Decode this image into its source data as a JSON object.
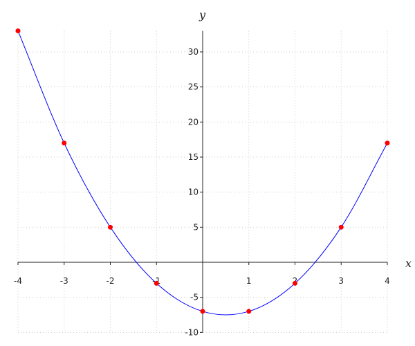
{
  "chart_data": {
    "type": "scatter",
    "title": "",
    "xlabel": "x",
    "ylabel": "y",
    "xlim": [
      -4,
      4
    ],
    "ylim": [
      -10,
      33
    ],
    "grid": true,
    "x_ticks": [
      -4,
      -3,
      -2,
      -1,
      1,
      2,
      3,
      4
    ],
    "y_ticks": [
      -10,
      -5,
      5,
      10,
      15,
      20,
      25,
      30
    ],
    "x_tick_labels": [
      "-4",
      "-3",
      "-2",
      "-1",
      "1",
      "2",
      "3",
      "4"
    ],
    "y_tick_labels": [
      "-10",
      "-5",
      "5",
      "10",
      "15",
      "20",
      "25",
      "30"
    ],
    "points": {
      "x": [
        -4,
        -3,
        -2,
        -1,
        0,
        1,
        2,
        3,
        4
      ],
      "y": [
        33,
        17,
        5,
        -3,
        -7,
        -7,
        -3,
        5,
        17
      ],
      "color": "#ff0000"
    },
    "curve": {
      "style": "smooth line through points",
      "color": "#0000ff"
    }
  }
}
